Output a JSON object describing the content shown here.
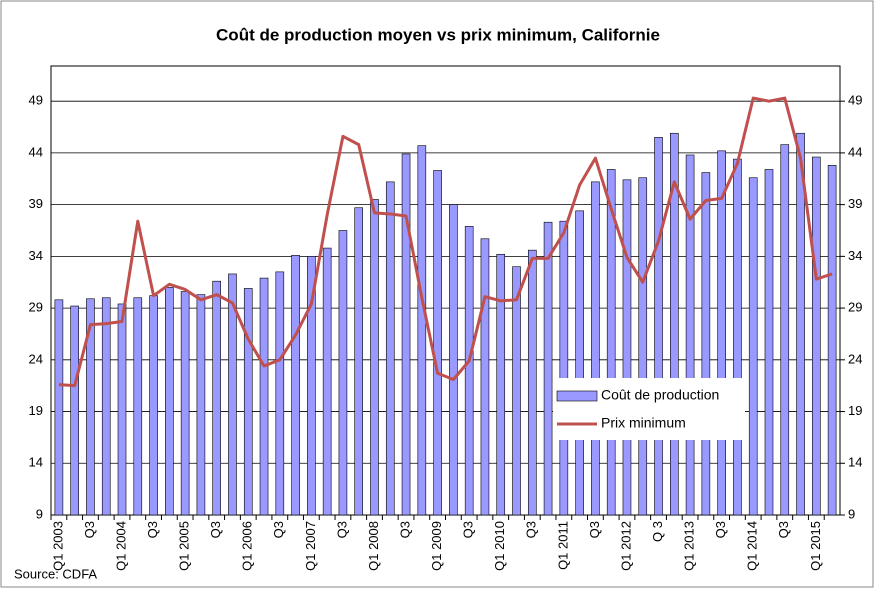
{
  "chart_data": {
    "type": "bar_line",
    "title": "Coût de production moyen vs prix minimum, Californie",
    "source": "Source: CDFA",
    "categories": [
      "Q1 2003",
      null,
      "Q3",
      null,
      "Q1 2004",
      null,
      "Q3",
      null,
      "Q1 2005",
      null,
      "Q3",
      null,
      "Q1 2006",
      null,
      "Q3",
      null,
      "Q1 2007",
      null,
      "Q3",
      null,
      "Q1 2008",
      null,
      "Q3",
      null,
      "Q1 2009",
      null,
      "Q3",
      null,
      "Q1 2010",
      null,
      "Q3",
      null,
      "Q1 2011",
      null,
      "Q3",
      null,
      "Q1 2012",
      null,
      "Q 3",
      null,
      "Q1 2013",
      null,
      "Q3",
      null,
      "Q1 2014",
      null,
      "Q3",
      null,
      "Q1 2015",
      null
    ],
    "series": [
      {
        "name": "Coût de production",
        "kind": "bar",
        "color": "#9999ff",
        "values": [
          29.8,
          29.2,
          29.9,
          30.0,
          29.4,
          30.0,
          30.2,
          31.0,
          30.6,
          30.3,
          31.6,
          32.3,
          30.9,
          31.9,
          32.5,
          34.1,
          34.0,
          34.8,
          36.5,
          38.7,
          39.5,
          41.2,
          43.9,
          44.7,
          42.3,
          39.0,
          36.9,
          35.7,
          34.2,
          33.0,
          34.6,
          37.3,
          37.4,
          38.4,
          41.2,
          42.4,
          41.4,
          41.6,
          45.5,
          45.9,
          43.8,
          42.1,
          44.2,
          43.4,
          41.6,
          42.4,
          44.8,
          45.9,
          43.6,
          42.8
        ]
      },
      {
        "name": "Prix minimum",
        "kind": "line",
        "color": "#c0504d",
        "values": [
          21.6,
          21.5,
          27.4,
          27.5,
          27.7,
          37.4,
          30.2,
          31.3,
          30.8,
          29.8,
          30.3,
          29.5,
          26.0,
          23.4,
          24.0,
          26.4,
          29.4,
          38.0,
          45.6,
          44.8,
          38.2,
          38.1,
          37.9,
          30.0,
          22.7,
          22.1,
          23.9,
          30.1,
          29.7,
          29.8,
          33.8,
          33.8,
          36.3,
          40.9,
          43.5,
          38.6,
          33.9,
          31.5,
          35.5,
          41.2,
          37.6,
          39.4,
          39.6,
          43.0,
          49.3,
          49.0,
          49.3,
          43.5,
          31.8,
          32.3
        ]
      }
    ],
    "ylim": [
      9,
      52.4
    ],
    "yticks": [
      9,
      14,
      19,
      24,
      29,
      34,
      39,
      44,
      49
    ],
    "y2lim": [
      9,
      52.4
    ],
    "y2ticks": [
      9,
      14,
      19,
      24,
      29,
      34,
      39,
      44,
      49
    ],
    "grid": true,
    "legend": "lower-right"
  }
}
